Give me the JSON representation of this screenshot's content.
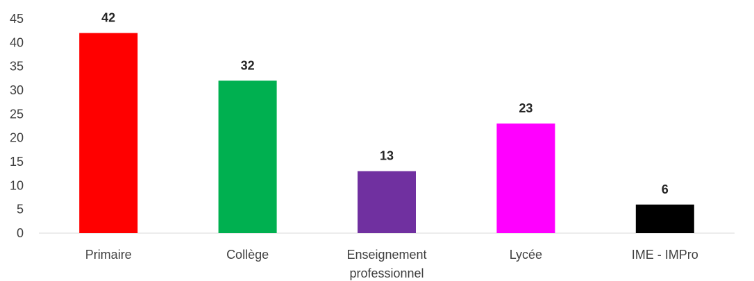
{
  "chart_data": {
    "type": "bar",
    "categories": [
      [
        "Primaire"
      ],
      [
        "Collège"
      ],
      [
        "Enseignement",
        "professionnel"
      ],
      [
        "Lycée"
      ],
      [
        "IME - IMPro"
      ]
    ],
    "values": [
      42,
      32,
      13,
      23,
      6
    ],
    "data_labels": [
      "42",
      "32",
      "13",
      "23",
      "6"
    ],
    "colors": [
      "#ff0000",
      "#00b050",
      "#7030a0",
      "#ff00ff",
      "#000000"
    ],
    "ylim": [
      0,
      45
    ],
    "yticks": [
      0,
      5,
      10,
      15,
      20,
      25,
      30,
      35,
      40,
      45
    ],
    "title": "",
    "xlabel": "",
    "ylabel": "",
    "grid": false,
    "axis_color": "#d9d9d9"
  }
}
